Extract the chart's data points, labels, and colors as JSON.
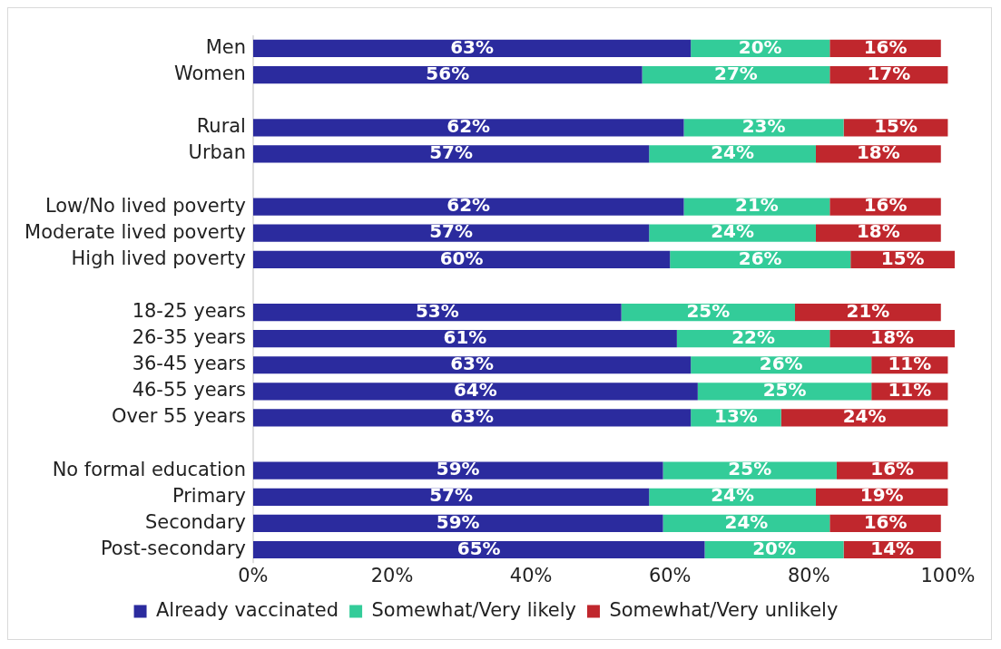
{
  "chart_data": {
    "type": "bar",
    "orientation": "horizontal",
    "stacked": true,
    "categories": [
      "Men",
      "Women",
      null,
      "Rural",
      "Urban",
      null,
      "Low/No lived poverty",
      "Moderate lived poverty",
      "High lived poverty",
      null,
      "18-25 years",
      "26-35 years",
      "36-45 years",
      "46-55 years",
      "Over 55 years",
      null,
      "No formal education",
      "Primary",
      "Secondary",
      "Post-secondary"
    ],
    "series": [
      {
        "name": "Already vaccinated",
        "color": "#2b2b9e",
        "values": [
          63,
          56,
          null,
          62,
          57,
          null,
          62,
          57,
          60,
          null,
          53,
          61,
          63,
          64,
          63,
          null,
          59,
          57,
          59,
          65
        ],
        "value_labels": [
          "63%",
          "56%",
          null,
          "62%",
          "57%",
          null,
          "62%",
          "57%",
          "60%",
          null,
          "53%",
          "61%",
          "63%",
          "64%",
          "63%",
          null,
          "59%",
          "57%",
          "59%",
          "65%"
        ]
      },
      {
        "name": "Somewhat/Very likely",
        "color": "#33cc99",
        "values": [
          20,
          27,
          null,
          23,
          24,
          null,
          21,
          24,
          26,
          null,
          25,
          22,
          26,
          25,
          13,
          null,
          25,
          24,
          24,
          20
        ],
        "value_labels": [
          "20%",
          "27%",
          null,
          "23%",
          "24%",
          null,
          "21%",
          "24%",
          "26%",
          null,
          "25%",
          "22%",
          "26%",
          "25%",
          "13%",
          null,
          "25%",
          "24%",
          "24%",
          "20%"
        ]
      },
      {
        "name": "Somewhat/Very unlikely",
        "color": "#c0272d",
        "values": [
          16,
          17,
          null,
          15,
          18,
          null,
          16,
          18,
          15,
          null,
          21,
          18,
          11,
          11,
          24,
          null,
          16,
          19,
          16,
          14
        ],
        "value_labels": [
          "16%",
          "17%",
          null,
          "15%",
          "18%",
          null,
          "16%",
          "18%",
          "15%",
          null,
          "21%",
          "18%",
          "11%",
          "11%",
          "24%",
          null,
          "16%",
          "19%",
          "16%",
          "14%"
        ]
      }
    ],
    "xlim": [
      0,
      101
    ],
    "xticks": [
      {
        "value": 0,
        "label": "0%"
      },
      {
        "value": 20,
        "label": "20%"
      },
      {
        "value": 40,
        "label": "40%"
      },
      {
        "value": 60,
        "label": "60%"
      },
      {
        "value": 80,
        "label": "80%"
      },
      {
        "value": 100,
        "label": "100%"
      }
    ],
    "grid": false,
    "legend": "bottom"
  }
}
